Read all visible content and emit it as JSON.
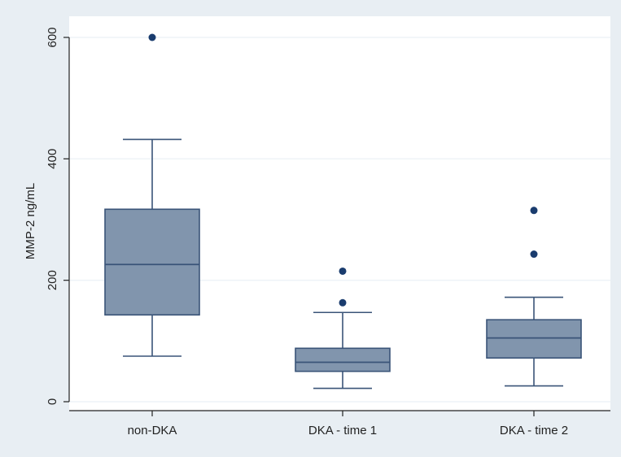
{
  "chart_data": {
    "type": "box",
    "title": "",
    "xlabel": "",
    "ylabel": "MMP-2 ng/mL",
    "ylim": [
      0,
      600
    ],
    "yticks": [
      0,
      200,
      400,
      600
    ],
    "grid": true,
    "colors": {
      "outer_background": "#e8eef3",
      "plot_background": "#ffffff",
      "box_fill": "#8195ad",
      "line": "#3a5478",
      "outlier": "#1a3c6e",
      "grid": "#eef3f7"
    },
    "categories": [
      "non-DKA",
      "DKA - time 1",
      "DKA - time 2"
    ],
    "boxes": [
      {
        "category": "non-DKA",
        "whisker_low": 75,
        "q1": 143,
        "median": 226,
        "q3": 317,
        "whisker_high": 432,
        "outliers": [
          600
        ]
      },
      {
        "category": "DKA - time 1",
        "whisker_low": 22,
        "q1": 50,
        "median": 65,
        "q3": 88,
        "whisker_high": 147,
        "outliers": [
          163,
          215
        ]
      },
      {
        "category": "DKA - time 2",
        "whisker_low": 26,
        "q1": 72,
        "median": 105,
        "q3": 135,
        "whisker_high": 172,
        "outliers": [
          243,
          315
        ]
      }
    ]
  }
}
